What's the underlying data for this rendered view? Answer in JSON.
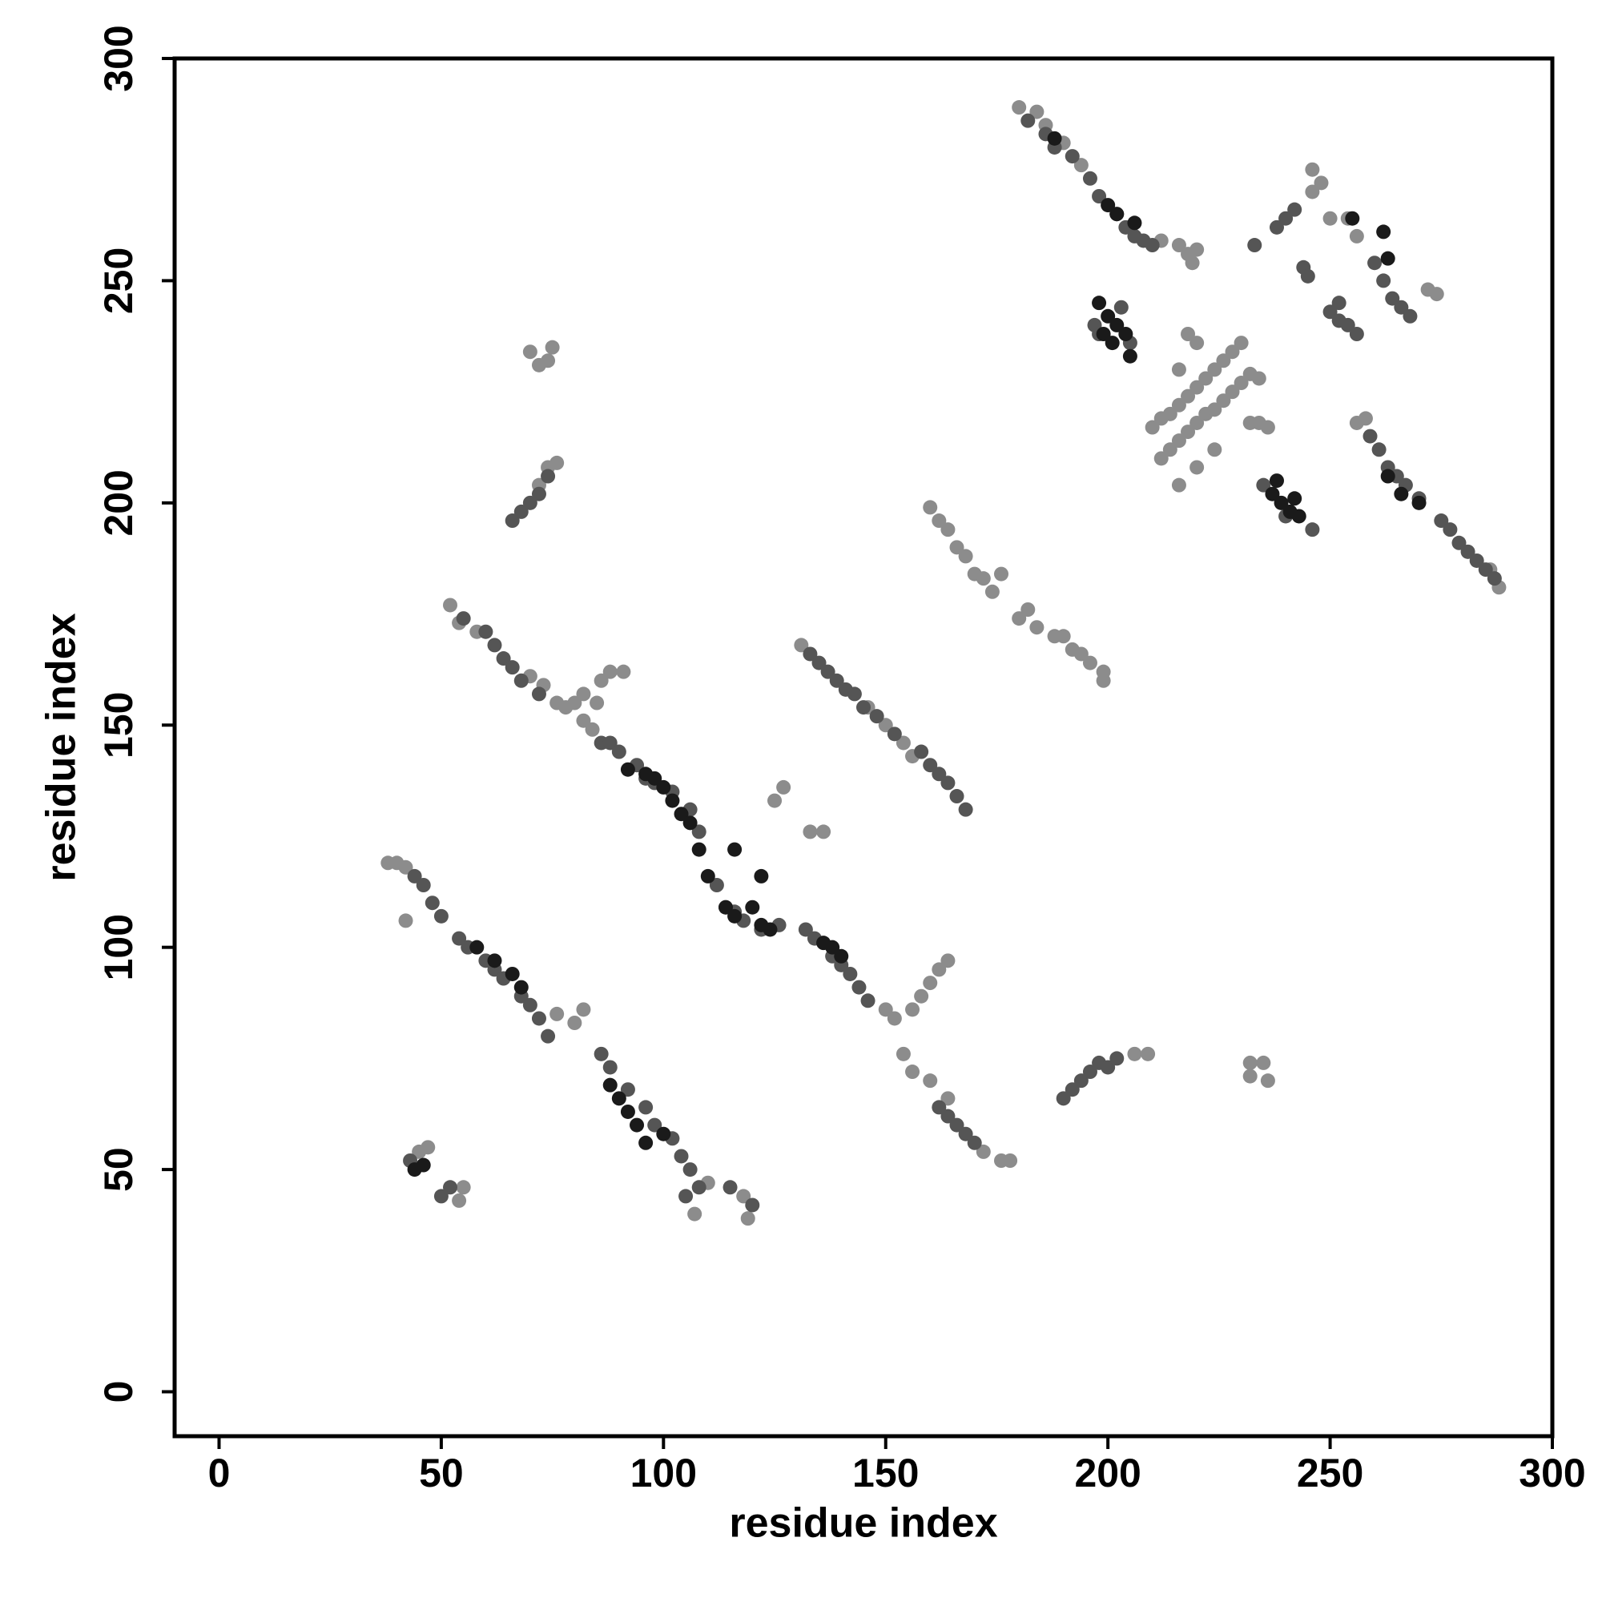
{
  "chart_data": {
    "type": "scatter",
    "xlabel": "residue index",
    "ylabel": "residue index",
    "xlim": [
      -10,
      300
    ],
    "ylim": [
      -10,
      300
    ],
    "xticks": [
      0,
      50,
      100,
      150,
      200,
      250,
      300
    ],
    "yticks": [
      0,
      50,
      100,
      150,
      200,
      250,
      300
    ],
    "series": [
      {
        "color": "#8c8c8c",
        "x": [
          180,
          184,
          186,
          190,
          194,
          212,
          216,
          218,
          220,
          219,
          214,
          216,
          218,
          220,
          222,
          224,
          226,
          228,
          230,
          212,
          214,
          216,
          218,
          220,
          222,
          224,
          226,
          228,
          230,
          232,
          234,
          218,
          220,
          216,
          232,
          234,
          236,
          210,
          212,
          216,
          220,
          224,
          246,
          248,
          246,
          250,
          254,
          256,
          272,
          274,
          256,
          258,
          288,
          286,
          52,
          54,
          58,
          70,
          73,
          76,
          78,
          82,
          84,
          80,
          150,
          152,
          154,
          156,
          160,
          164,
          172,
          176,
          178,
          160,
          162,
          164,
          166,
          168,
          170,
          172,
          174,
          176,
          180,
          182,
          184,
          188,
          190,
          192,
          194,
          196,
          199,
          199,
          131,
          146,
          150,
          154,
          156,
          40,
          42,
          38,
          42,
          82,
          80,
          76,
          45,
          47,
          55,
          54,
          107,
          110,
          119,
          118,
          70,
          74,
          72,
          75,
          74,
          76,
          72,
          82,
          86,
          88,
          91,
          85,
          125,
          127,
          133,
          136,
          160,
          162,
          164,
          158,
          156,
          206,
          209,
          232,
          235,
          236,
          232
        ],
        "values": [
          289,
          288,
          285,
          281,
          276,
          259,
          258,
          256,
          257,
          254,
          220,
          222,
          224,
          226,
          228,
          230,
          232,
          234,
          236,
          210,
          212,
          214,
          216,
          218,
          220,
          221,
          223,
          225,
          227,
          229,
          228,
          238,
          236,
          230,
          218,
          218,
          217,
          217,
          219,
          204,
          208,
          212,
          275,
          272,
          270,
          264,
          264,
          260,
          248,
          247,
          218,
          219,
          181,
          185,
          177,
          173,
          171,
          161,
          159,
          155,
          154,
          151,
          149,
          155,
          86,
          84,
          76,
          72,
          70,
          66,
          54,
          52,
          52,
          199,
          196,
          194,
          190,
          188,
          184,
          183,
          180,
          184,
          174,
          176,
          172,
          170,
          170,
          167,
          166,
          164,
          162,
          160,
          168,
          154,
          150,
          146,
          143,
          119,
          118,
          119,
          106,
          86,
          83,
          85,
          54,
          55,
          46,
          43,
          40,
          47,
          39,
          44,
          234,
          232,
          231,
          235,
          208,
          209,
          204,
          157,
          160,
          162,
          162,
          155,
          133,
          136,
          126,
          126,
          92,
          95,
          97,
          89,
          86,
          76,
          76,
          74,
          74,
          70,
          71
        ]
      },
      {
        "color": "#555555",
        "x": [
          182,
          186,
          188,
          192,
          196,
          198,
          202,
          204,
          206,
          208,
          210,
          259,
          261,
          263,
          265,
          267,
          270,
          275,
          277,
          279,
          281,
          283,
          285,
          287,
          238,
          240,
          242,
          244,
          245,
          252,
          254,
          262,
          264,
          266,
          268,
          250,
          252,
          256,
          260,
          233,
          198,
          203,
          205,
          197,
          235,
          246,
          240,
          55,
          60,
          62,
          64,
          66,
          68,
          72,
          86,
          88,
          90,
          94,
          96,
          98,
          102,
          106,
          108,
          112,
          114,
          116,
          118,
          122,
          126,
          132,
          134,
          138,
          140,
          142,
          144,
          146,
          162,
          164,
          166,
          168,
          170,
          133,
          135,
          137,
          139,
          141,
          143,
          145,
          148,
          152,
          158,
          160,
          162,
          164,
          166,
          168,
          44,
          46,
          48,
          50,
          54,
          56,
          60,
          62,
          64,
          68,
          70,
          72,
          74,
          86,
          88,
          92,
          96,
          98,
          102,
          104,
          106,
          43,
          50,
          52,
          105,
          108,
          115,
          120,
          66,
          68,
          70,
          72,
          74,
          190,
          192,
          194,
          196,
          198,
          200,
          202
        ],
        "values": [
          286,
          283,
          280,
          278,
          273,
          269,
          265,
          262,
          260,
          259,
          258,
          215,
          212,
          208,
          206,
          204,
          201,
          196,
          194,
          191,
          189,
          187,
          185,
          183,
          262,
          264,
          266,
          253,
          251,
          245,
          240,
          250,
          246,
          244,
          242,
          243,
          241,
          238,
          254,
          258,
          238,
          244,
          236,
          240,
          204,
          194,
          197,
          174,
          171,
          168,
          165,
          163,
          160,
          157,
          146,
          146,
          144,
          141,
          138,
          137,
          135,
          131,
          126,
          114,
          109,
          108,
          106,
          104,
          105,
          104,
          102,
          98,
          96,
          94,
          91,
          88,
          64,
          62,
          60,
          58,
          56,
          166,
          164,
          162,
          160,
          158,
          157,
          154,
          152,
          148,
          144,
          141,
          139,
          137,
          134,
          131,
          116,
          114,
          110,
          107,
          102,
          100,
          97,
          95,
          93,
          89,
          87,
          84,
          80,
          76,
          73,
          68,
          64,
          60,
          57,
          53,
          50,
          52,
          44,
          46,
          44,
          46,
          46,
          42,
          196,
          198,
          200,
          202,
          206,
          66,
          68,
          70,
          72,
          74,
          73,
          75
        ]
      },
      {
        "color": "#1a1a1a",
        "x": [
          188,
          200,
          202,
          206,
          255,
          263,
          262,
          198,
          200,
          202,
          204,
          199,
          201,
          205,
          237,
          239,
          241,
          243,
          238,
          242,
          263,
          266,
          270,
          92,
          96,
          98,
          100,
          102,
          104,
          106,
          108,
          110,
          114,
          116,
          120,
          122,
          124,
          136,
          138,
          140,
          58,
          62,
          66,
          68,
          88,
          90,
          92,
          94,
          96,
          100,
          44,
          46,
          116,
          122
        ],
        "values": [
          282,
          267,
          265,
          263,
          264,
          255,
          261,
          245,
          242,
          240,
          238,
          238,
          236,
          233,
          202,
          200,
          198,
          197,
          205,
          201,
          206,
          202,
          200,
          140,
          139,
          138,
          136,
          133,
          130,
          128,
          122,
          116,
          109,
          107,
          109,
          105,
          104,
          101,
          100,
          98,
          100,
          97,
          94,
          91,
          69,
          66,
          63,
          60,
          56,
          58,
          50,
          51,
          122,
          116
        ]
      }
    ]
  }
}
